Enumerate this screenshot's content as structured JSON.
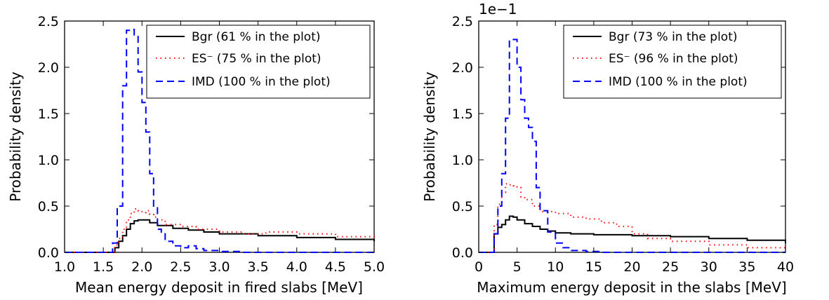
{
  "chart_data": [
    {
      "type": "line",
      "xlabel": "Mean energy deposit in fired slabs [MeV]",
      "ylabel": "Probability density",
      "xlim": [
        1.0,
        5.0
      ],
      "ylim": [
        0.0,
        2.5
      ],
      "xticks": [
        "1.0",
        "1.5",
        "2.0",
        "2.5",
        "3.0",
        "3.5",
        "4.0",
        "4.5",
        "5.0"
      ],
      "yticks": [
        "0.0",
        "0.5",
        "1.0",
        "1.5",
        "2.0",
        "2.5"
      ],
      "legend_position": "top-right",
      "series": [
        {
          "name": "Bgr (61 % in the plot)",
          "color": "#000000",
          "style": "solid",
          "x": [
            1.0,
            1.55,
            1.65,
            1.7,
            1.75,
            1.8,
            1.85,
            1.9,
            1.95,
            2.0,
            2.1,
            2.2,
            2.4,
            2.6,
            2.8,
            3.0,
            3.5,
            4.0,
            4.5,
            5.0
          ],
          "y": [
            0.0,
            0.0,
            0.05,
            0.12,
            0.18,
            0.25,
            0.31,
            0.34,
            0.35,
            0.35,
            0.32,
            0.29,
            0.26,
            0.24,
            0.22,
            0.2,
            0.18,
            0.16,
            0.14,
            0.12
          ]
        },
        {
          "name": "ES⁻  (75 % in the plot)",
          "color": "#ff0000",
          "style": "dotted",
          "x": [
            1.0,
            1.55,
            1.65,
            1.7,
            1.75,
            1.8,
            1.85,
            1.9,
            1.95,
            2.0,
            2.05,
            2.1,
            2.15,
            2.2,
            2.3,
            2.5,
            2.7,
            3.0,
            3.3,
            3.6,
            4.0,
            4.5,
            5.0
          ],
          "y": [
            0.0,
            0.0,
            0.08,
            0.15,
            0.25,
            0.35,
            0.42,
            0.47,
            0.45,
            0.43,
            0.45,
            0.41,
            0.38,
            0.35,
            0.3,
            0.28,
            0.25,
            0.22,
            0.2,
            0.22,
            0.2,
            0.17,
            0.13
          ]
        },
        {
          "name": "IMD (100 % in the plot)",
          "color": "#0000ff",
          "style": "dashed",
          "x": [
            1.0,
            1.55,
            1.62,
            1.68,
            1.75,
            1.8,
            1.85,
            1.9,
            1.95,
            2.0,
            2.05,
            2.1,
            2.15,
            2.2,
            2.25,
            2.3,
            2.4,
            2.5,
            2.6,
            2.7,
            2.8,
            3.0,
            3.3,
            5.0
          ],
          "y": [
            0.0,
            0.0,
            0.1,
            0.5,
            1.8,
            2.4,
            2.41,
            2.35,
            1.95,
            1.62,
            1.3,
            0.85,
            0.5,
            0.25,
            0.2,
            0.12,
            0.07,
            0.05,
            0.07,
            0.04,
            0.02,
            0.01,
            0.0,
            0.0
          ]
        }
      ]
    },
    {
      "type": "line",
      "xlabel": "Maximum energy deposit in the slabs [MeV]",
      "ylabel": "Probability density",
      "y_offset_text": "1e−1",
      "xlim": [
        0,
        40
      ],
      "ylim": [
        0.0,
        2.5
      ],
      "xticks": [
        "0",
        "5",
        "10",
        "15",
        "20",
        "25",
        "30",
        "35",
        "40"
      ],
      "yticks": [
        "0.0",
        "0.5",
        "1.0",
        "1.5",
        "2.0",
        "2.5"
      ],
      "legend_position": "top-right",
      "series": [
        {
          "name": "Bgr (73 % in the plot)",
          "color": "#000000",
          "style": "solid",
          "x": [
            0,
            1.8,
            2.0,
            2.5,
            3.0,
            3.5,
            4.0,
            4.5,
            5.0,
            6.0,
            7.0,
            8.0,
            9.0,
            10.0,
            12.0,
            15.0,
            20.0,
            25.0,
            30.0,
            35.0,
            40.0
          ],
          "y": [
            0.0,
            0.0,
            0.2,
            0.27,
            0.3,
            0.35,
            0.39,
            0.38,
            0.35,
            0.31,
            0.28,
            0.25,
            0.23,
            0.21,
            0.2,
            0.19,
            0.18,
            0.17,
            0.15,
            0.13,
            0.1
          ]
        },
        {
          "name": "ES⁻  (96 % in the plot)",
          "color": "#ff0000",
          "style": "dotted",
          "x": [
            0,
            1.8,
            2.0,
            2.5,
            3.0,
            3.5,
            4.0,
            4.5,
            5.0,
            5.5,
            6.0,
            7.0,
            8.0,
            10.0,
            12.0,
            14.0,
            16.0,
            18.0,
            20.0,
            22.0,
            25.0,
            30.0,
            35.0,
            40.0
          ],
          "y": [
            0.0,
            0.0,
            0.3,
            0.52,
            0.65,
            0.74,
            0.73,
            0.72,
            0.7,
            0.6,
            0.57,
            0.5,
            0.44,
            0.42,
            0.38,
            0.36,
            0.32,
            0.28,
            0.2,
            0.15,
            0.12,
            0.08,
            0.05,
            0.03
          ]
        },
        {
          "name": "IMD (100 % in the plot)",
          "color": "#0000ff",
          "style": "dashed",
          "x": [
            0,
            1.8,
            2.0,
            2.5,
            3.0,
            3.5,
            4.0,
            4.5,
            5.0,
            5.5,
            6.0,
            6.5,
            7.0,
            7.5,
            8.0,
            9.0,
            10.0,
            11.0,
            12.0,
            14.0,
            16.0,
            40.0
          ],
          "y": [
            0.0,
            0.0,
            0.2,
            0.5,
            0.85,
            1.45,
            2.3,
            2.3,
            2.0,
            1.65,
            1.45,
            1.35,
            1.2,
            0.7,
            0.45,
            0.22,
            0.1,
            0.05,
            0.02,
            0.01,
            0.0,
            0.0
          ]
        }
      ]
    }
  ]
}
